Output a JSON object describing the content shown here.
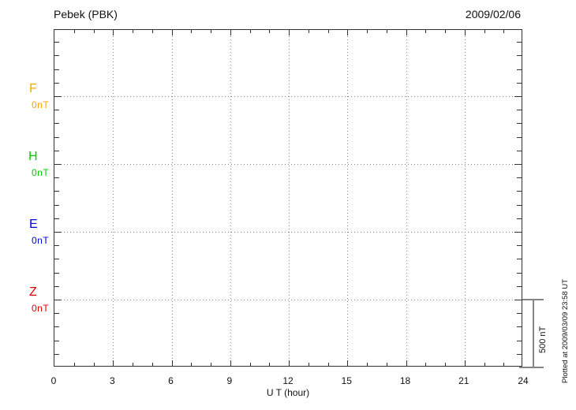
{
  "header": {
    "title": "Pebek (PBK)",
    "date": "2009/02/06"
  },
  "components": [
    {
      "label": "F",
      "unit": "0nT",
      "color": "#FFA500"
    },
    {
      "label": "H",
      "unit": "0nT",
      "color": "#00CC00"
    },
    {
      "label": "E",
      "unit": "0nT",
      "color": "#0000DD"
    },
    {
      "label": "Z",
      "unit": "0nT",
      "color": "#DD0000"
    }
  ],
  "xaxis": {
    "label": "U T (hour)",
    "ticks": [
      "0",
      "3",
      "6",
      "9",
      "12",
      "15",
      "18",
      "21",
      "24"
    ]
  },
  "scale_bar": {
    "label": "500 nT"
  },
  "footer_note": "Plotted at 2009/03/09 23:58 UT",
  "chart_data": {
    "type": "line",
    "title": "Pebek (PBK)",
    "subtitle_date": "2009/02/06",
    "xlabel": "U T (hour)",
    "xlim": [
      0,
      24
    ],
    "xticks": [
      0,
      3,
      6,
      9,
      12,
      15,
      18,
      21,
      24
    ],
    "x_minor_tick_interval_hours": 1,
    "grid": "dotted vertical lines every 3 hours; dotted horizontal line at each component baseline",
    "legend_position": "left margin, one colored label per stacked component",
    "y_scale_per_division_nT": 500,
    "y_minor_tick_nT": 100,
    "series": [
      {
        "name": "F",
        "baseline_label": "0nT",
        "baseline_nT": 0,
        "color": "#FFA500",
        "values": []
      },
      {
        "name": "H",
        "baseline_label": "0nT",
        "baseline_nT": 0,
        "color": "#00CC00",
        "values": []
      },
      {
        "name": "E",
        "baseline_label": "0nT",
        "baseline_nT": 0,
        "color": "#0000DD",
        "values": []
      },
      {
        "name": "Z",
        "baseline_label": "0nT",
        "baseline_nT": 0,
        "color": "#DD0000",
        "values": []
      }
    ],
    "annotations": {
      "scale_bar_label": "500 nT",
      "plotted_at": "Plotted at 2009/03/09 23:58 UT"
    },
    "note": "Magnetogram frame contains no data traces for this day; plot area is empty except gridlines."
  }
}
